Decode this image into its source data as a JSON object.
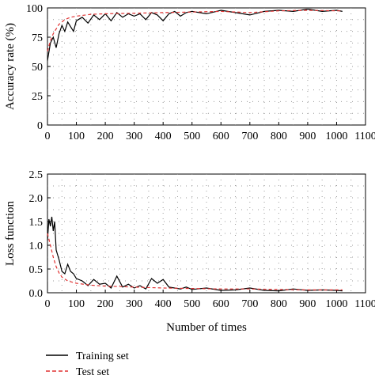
{
  "chart_data": [
    {
      "type": "line",
      "xlabel": "",
      "ylabel": "Accuracy rate (%)",
      "xlim": [
        0,
        1100
      ],
      "ylim": [
        0,
        100
      ],
      "xticks": [
        "0",
        "100",
        "200",
        "300",
        "400",
        "500",
        "600",
        "700",
        "800",
        "900",
        "1000",
        "1100"
      ],
      "yticks": [
        "0",
        "25",
        "50",
        "75",
        "100"
      ],
      "grid": "dotted",
      "series": [
        {
          "name": "Training set",
          "color": "#000000",
          "style": "solid",
          "x": [
            0,
            10,
            20,
            30,
            40,
            50,
            60,
            70,
            80,
            90,
            100,
            120,
            140,
            160,
            180,
            200,
            220,
            240,
            260,
            280,
            300,
            320,
            340,
            360,
            380,
            400,
            420,
            440,
            460,
            480,
            500,
            550,
            600,
            650,
            700,
            750,
            800,
            850,
            900,
            950,
            1000,
            1020
          ],
          "values": [
            55,
            70,
            75,
            66,
            78,
            85,
            80,
            88,
            84,
            80,
            89,
            92,
            87,
            94,
            90,
            95,
            89,
            96,
            92,
            95,
            93,
            95,
            90,
            96,
            94,
            89,
            95,
            97,
            93,
            96,
            97,
            95,
            98,
            96,
            94,
            97,
            98,
            97,
            99,
            97,
            98,
            97
          ]
        },
        {
          "name": "Test set",
          "color": "#e03030",
          "style": "dashed",
          "x": [
            0,
            10,
            20,
            40,
            60,
            80,
            100,
            150,
            200,
            300,
            400,
            500,
            600,
            700,
            800,
            900,
            1000,
            1020
          ],
          "values": [
            63,
            72,
            78,
            86,
            90,
            92,
            93,
            94.5,
            95,
            95.5,
            96,
            96.5,
            97,
            96,
            97.5,
            98,
            97.5,
            97.5
          ]
        }
      ]
    },
    {
      "type": "line",
      "xlabel": "Number of times",
      "ylabel": "Loss function",
      "xlim": [
        0,
        1100
      ],
      "ylim": [
        0,
        2.5
      ],
      "xticks": [
        "0",
        "100",
        "200",
        "300",
        "400",
        "500",
        "600",
        "700",
        "800",
        "900",
        "1000",
        "1100"
      ],
      "yticks": [
        "0.0",
        "0.5",
        "1.0",
        "1.5",
        "2.0",
        "2.5"
      ],
      "grid": "dotted",
      "series": [
        {
          "name": "Training set",
          "color": "#000000",
          "style": "solid",
          "x": [
            0,
            5,
            10,
            15,
            20,
            25,
            30,
            40,
            50,
            60,
            70,
            80,
            90,
            100,
            120,
            140,
            160,
            180,
            200,
            220,
            240,
            260,
            280,
            300,
            320,
            340,
            360,
            380,
            400,
            420,
            440,
            460,
            480,
            500,
            550,
            600,
            650,
            700,
            750,
            800,
            850,
            900,
            950,
            1000,
            1020
          ],
          "values": [
            1.1,
            1.55,
            1.4,
            1.6,
            1.3,
            1.5,
            0.9,
            0.7,
            0.45,
            0.4,
            0.6,
            0.45,
            0.4,
            0.3,
            0.25,
            0.15,
            0.28,
            0.18,
            0.2,
            0.1,
            0.35,
            0.12,
            0.18,
            0.1,
            0.15,
            0.08,
            0.3,
            0.2,
            0.28,
            0.12,
            0.1,
            0.08,
            0.12,
            0.07,
            0.1,
            0.05,
            0.06,
            0.1,
            0.05,
            0.04,
            0.08,
            0.05,
            0.06,
            0.05,
            0.04
          ]
        },
        {
          "name": "Test set",
          "color": "#e03030",
          "style": "dashed",
          "x": [
            0,
            10,
            20,
            30,
            40,
            50,
            70,
            100,
            150,
            200,
            300,
            400,
            500,
            600,
            700,
            800,
            900,
            1000,
            1020
          ],
          "values": [
            1.25,
            1.0,
            0.75,
            0.55,
            0.42,
            0.33,
            0.25,
            0.2,
            0.16,
            0.14,
            0.12,
            0.1,
            0.09,
            0.08,
            0.08,
            0.07,
            0.06,
            0.06,
            0.06
          ]
        }
      ]
    }
  ],
  "legend": {
    "placement": "bottom-left",
    "entries": [
      {
        "label": "Training set",
        "color": "#000000",
        "style": "solid"
      },
      {
        "label": "Test set",
        "color": "#e03030",
        "style": "dashed"
      }
    ]
  }
}
